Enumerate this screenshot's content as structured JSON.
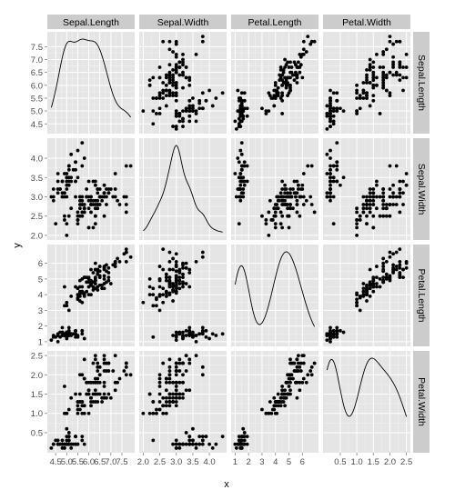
{
  "chart_data": {
    "type": "scatter-matrix",
    "xlabel": "x",
    "ylabel": "y",
    "variables": [
      "Sepal.Length",
      "Sepal.Width",
      "Petal.Length",
      "Petal.Width"
    ],
    "ranges": [
      [
        4.3,
        7.9
      ],
      [
        2.0,
        4.4
      ],
      [
        1.0,
        6.9
      ],
      [
        0.1,
        2.5
      ]
    ],
    "ticks": [
      [
        4.5,
        5.0,
        5.5,
        6.0,
        6.5,
        7.0,
        7.5
      ],
      [
        2.0,
        2.5,
        3.0,
        3.5,
        4.0
      ],
      [
        1,
        2,
        3,
        4,
        5,
        6
      ],
      [
        0.5,
        1.0,
        1.5,
        2.0,
        2.5
      ]
    ],
    "y_tick_labels": [
      [
        "4.5",
        "5.0",
        "5.5",
        "6.0",
        "6.5",
        "7.0",
        "7.5"
      ],
      [
        "2.0",
        "2.5",
        "3.0",
        "3.5",
        "4.0"
      ],
      [
        "1",
        "2",
        "3",
        "4",
        "5",
        "6"
      ],
      [
        "0.5",
        "1.0",
        "1.5",
        "2.0",
        "2.5"
      ]
    ],
    "x_tick_labels": [
      [
        "4.5",
        "5.0",
        "5.5",
        "6.0",
        "6.5",
        "7.0",
        "7.5"
      ],
      [
        "2.0",
        "2.5",
        "3.0",
        "3.5",
        "4.0"
      ],
      [
        "1",
        "2",
        "3",
        "4",
        "5",
        "6"
      ],
      [
        "0.5",
        "1.0",
        "1.5",
        "2.0",
        "2.5"
      ]
    ],
    "diagonal": "density",
    "grid": true,
    "points": [
      [
        5.1,
        3.5,
        1.4,
        0.2
      ],
      [
        4.9,
        3.0,
        1.4,
        0.2
      ],
      [
        4.7,
        3.2,
        1.3,
        0.2
      ],
      [
        4.6,
        3.1,
        1.5,
        0.2
      ],
      [
        5.0,
        3.6,
        1.4,
        0.2
      ],
      [
        5.4,
        3.9,
        1.7,
        0.4
      ],
      [
        4.6,
        3.4,
        1.4,
        0.3
      ],
      [
        5.0,
        3.4,
        1.5,
        0.2
      ],
      [
        4.4,
        2.9,
        1.4,
        0.2
      ],
      [
        4.9,
        3.1,
        1.5,
        0.1
      ],
      [
        5.4,
        3.7,
        1.5,
        0.2
      ],
      [
        4.8,
        3.4,
        1.6,
        0.2
      ],
      [
        4.8,
        3.0,
        1.4,
        0.1
      ],
      [
        4.3,
        3.0,
        1.1,
        0.1
      ],
      [
        5.8,
        4.0,
        1.2,
        0.2
      ],
      [
        5.7,
        4.4,
        1.5,
        0.4
      ],
      [
        5.4,
        3.9,
        1.3,
        0.4
      ],
      [
        5.1,
        3.5,
        1.4,
        0.3
      ],
      [
        5.7,
        3.8,
        1.7,
        0.3
      ],
      [
        5.1,
        3.8,
        1.5,
        0.3
      ],
      [
        5.4,
        3.4,
        1.7,
        0.2
      ],
      [
        5.1,
        3.7,
        1.5,
        0.4
      ],
      [
        4.6,
        3.6,
        1.0,
        0.2
      ],
      [
        5.1,
        3.3,
        1.7,
        0.5
      ],
      [
        4.8,
        3.4,
        1.9,
        0.2
      ],
      [
        5.0,
        3.0,
        1.6,
        0.2
      ],
      [
        5.0,
        3.4,
        1.6,
        0.4
      ],
      [
        5.2,
        3.5,
        1.5,
        0.2
      ],
      [
        5.2,
        3.4,
        1.4,
        0.2
      ],
      [
        4.7,
        3.2,
        1.6,
        0.2
      ],
      [
        4.8,
        3.1,
        1.6,
        0.2
      ],
      [
        5.4,
        3.4,
        1.5,
        0.4
      ],
      [
        5.2,
        4.1,
        1.5,
        0.1
      ],
      [
        5.5,
        4.2,
        1.4,
        0.2
      ],
      [
        4.9,
        3.1,
        1.5,
        0.2
      ],
      [
        5.0,
        3.2,
        1.2,
        0.2
      ],
      [
        5.5,
        3.5,
        1.3,
        0.2
      ],
      [
        4.9,
        3.6,
        1.4,
        0.1
      ],
      [
        4.4,
        3.0,
        1.3,
        0.2
      ],
      [
        5.1,
        3.4,
        1.5,
        0.2
      ],
      [
        5.0,
        3.5,
        1.3,
        0.3
      ],
      [
        4.5,
        2.3,
        1.3,
        0.3
      ],
      [
        4.4,
        3.2,
        1.3,
        0.2
      ],
      [
        5.0,
        3.5,
        1.6,
        0.6
      ],
      [
        5.1,
        3.8,
        1.9,
        0.4
      ],
      [
        4.8,
        3.0,
        1.4,
        0.3
      ],
      [
        5.1,
        3.8,
        1.6,
        0.2
      ],
      [
        4.6,
        3.2,
        1.4,
        0.2
      ],
      [
        5.3,
        3.7,
        1.5,
        0.2
      ],
      [
        5.0,
        3.3,
        1.4,
        0.2
      ],
      [
        7.0,
        3.2,
        4.7,
        1.4
      ],
      [
        6.4,
        3.2,
        4.5,
        1.5
      ],
      [
        6.9,
        3.1,
        4.9,
        1.5
      ],
      [
        5.5,
        2.3,
        4.0,
        1.3
      ],
      [
        6.5,
        2.8,
        4.6,
        1.5
      ],
      [
        5.7,
        2.8,
        4.5,
        1.3
      ],
      [
        6.3,
        3.3,
        4.7,
        1.6
      ],
      [
        4.9,
        2.4,
        3.3,
        1.0
      ],
      [
        6.6,
        2.9,
        4.6,
        1.3
      ],
      [
        5.2,
        2.7,
        3.9,
        1.4
      ],
      [
        5.0,
        2.0,
        3.5,
        1.0
      ],
      [
        5.9,
        3.0,
        4.2,
        1.5
      ],
      [
        6.0,
        2.2,
        4.0,
        1.0
      ],
      [
        6.1,
        2.9,
        4.7,
        1.4
      ],
      [
        5.6,
        2.9,
        3.6,
        1.3
      ],
      [
        6.7,
        3.1,
        4.4,
        1.4
      ],
      [
        5.6,
        3.0,
        4.5,
        1.5
      ],
      [
        5.8,
        2.7,
        4.1,
        1.0
      ],
      [
        6.2,
        2.2,
        4.5,
        1.5
      ],
      [
        5.6,
        2.5,
        3.9,
        1.1
      ],
      [
        5.9,
        3.2,
        4.8,
        1.8
      ],
      [
        6.1,
        2.8,
        4.0,
        1.3
      ],
      [
        6.3,
        2.5,
        4.9,
        1.5
      ],
      [
        6.1,
        2.8,
        4.7,
        1.2
      ],
      [
        6.4,
        2.9,
        4.3,
        1.3
      ],
      [
        6.6,
        3.0,
        4.4,
        1.4
      ],
      [
        6.8,
        2.8,
        4.8,
        1.4
      ],
      [
        6.7,
        3.0,
        5.0,
        1.7
      ],
      [
        6.0,
        2.9,
        4.5,
        1.5
      ],
      [
        5.7,
        2.6,
        3.5,
        1.0
      ],
      [
        5.5,
        2.4,
        3.8,
        1.1
      ],
      [
        5.5,
        2.4,
        3.7,
        1.0
      ],
      [
        5.8,
        2.7,
        3.9,
        1.2
      ],
      [
        6.0,
        2.7,
        5.1,
        1.6
      ],
      [
        5.4,
        3.0,
        4.5,
        1.5
      ],
      [
        6.0,
        3.4,
        4.5,
        1.6
      ],
      [
        6.7,
        3.1,
        4.7,
        1.5
      ],
      [
        6.3,
        2.3,
        4.4,
        1.3
      ],
      [
        5.6,
        3.0,
        4.1,
        1.3
      ],
      [
        5.5,
        2.5,
        4.0,
        1.3
      ],
      [
        5.5,
        2.6,
        4.4,
        1.2
      ],
      [
        6.1,
        3.0,
        4.6,
        1.4
      ],
      [
        5.8,
        2.6,
        4.0,
        1.2
      ],
      [
        5.0,
        2.3,
        3.3,
        1.0
      ],
      [
        5.6,
        2.7,
        4.2,
        1.3
      ],
      [
        5.7,
        3.0,
        4.2,
        1.2
      ],
      [
        5.7,
        2.9,
        4.2,
        1.3
      ],
      [
        6.2,
        2.9,
        4.3,
        1.3
      ],
      [
        5.1,
        2.5,
        3.0,
        1.1
      ],
      [
        5.7,
        2.8,
        4.1,
        1.3
      ],
      [
        6.3,
        3.3,
        6.0,
        2.5
      ],
      [
        5.8,
        2.7,
        5.1,
        1.9
      ],
      [
        7.1,
        3.0,
        5.9,
        2.1
      ],
      [
        6.3,
        2.9,
        5.6,
        1.8
      ],
      [
        6.5,
        3.0,
        5.8,
        2.2
      ],
      [
        7.6,
        3.0,
        6.6,
        2.1
      ],
      [
        4.9,
        2.5,
        4.5,
        1.7
      ],
      [
        7.3,
        2.9,
        6.3,
        1.8
      ],
      [
        6.7,
        2.5,
        5.8,
        1.8
      ],
      [
        7.2,
        3.6,
        6.1,
        2.5
      ],
      [
        6.5,
        3.2,
        5.1,
        2.0
      ],
      [
        6.4,
        2.7,
        5.3,
        1.9
      ],
      [
        6.8,
        3.0,
        5.5,
        2.1
      ],
      [
        5.7,
        2.5,
        5.0,
        2.0
      ],
      [
        5.8,
        2.8,
        5.1,
        2.4
      ],
      [
        6.4,
        3.2,
        5.3,
        2.3
      ],
      [
        6.5,
        3.0,
        5.5,
        1.8
      ],
      [
        7.7,
        3.8,
        6.7,
        2.2
      ],
      [
        7.7,
        2.6,
        6.9,
        2.3
      ],
      [
        6.0,
        2.2,
        5.0,
        1.5
      ],
      [
        6.9,
        3.2,
        5.7,
        2.3
      ],
      [
        5.6,
        2.8,
        4.9,
        2.0
      ],
      [
        7.7,
        2.8,
        6.7,
        2.0
      ],
      [
        6.3,
        2.7,
        4.9,
        1.8
      ],
      [
        6.7,
        3.3,
        5.7,
        2.1
      ],
      [
        7.2,
        3.2,
        6.0,
        1.8
      ],
      [
        6.2,
        2.8,
        4.8,
        1.8
      ],
      [
        6.1,
        3.0,
        4.9,
        1.8
      ],
      [
        6.4,
        2.8,
        5.6,
        2.1
      ],
      [
        7.2,
        3.0,
        5.8,
        1.6
      ],
      [
        7.4,
        2.8,
        6.1,
        1.9
      ],
      [
        7.9,
        3.8,
        6.4,
        2.0
      ],
      [
        6.4,
        2.8,
        5.6,
        2.2
      ],
      [
        6.3,
        2.8,
        5.1,
        1.5
      ],
      [
        6.1,
        2.6,
        5.6,
        1.4
      ],
      [
        7.7,
        3.0,
        6.1,
        2.3
      ],
      [
        6.3,
        3.4,
        5.6,
        2.4
      ],
      [
        6.4,
        3.1,
        5.5,
        1.8
      ],
      [
        6.0,
        3.0,
        4.8,
        1.8
      ],
      [
        6.9,
        3.1,
        5.4,
        2.1
      ],
      [
        6.7,
        3.1,
        5.6,
        2.4
      ],
      [
        6.9,
        3.1,
        5.1,
        2.3
      ],
      [
        5.8,
        2.7,
        5.1,
        1.9
      ],
      [
        6.8,
        3.2,
        5.9,
        2.3
      ],
      [
        6.7,
        3.3,
        5.7,
        2.5
      ],
      [
        6.7,
        3.0,
        5.2,
        2.3
      ],
      [
        6.3,
        2.5,
        5.0,
        1.9
      ],
      [
        6.5,
        3.0,
        5.2,
        2.0
      ],
      [
        6.2,
        3.4,
        5.4,
        2.3
      ],
      [
        5.9,
        3.0,
        5.1,
        1.8
      ]
    ]
  }
}
